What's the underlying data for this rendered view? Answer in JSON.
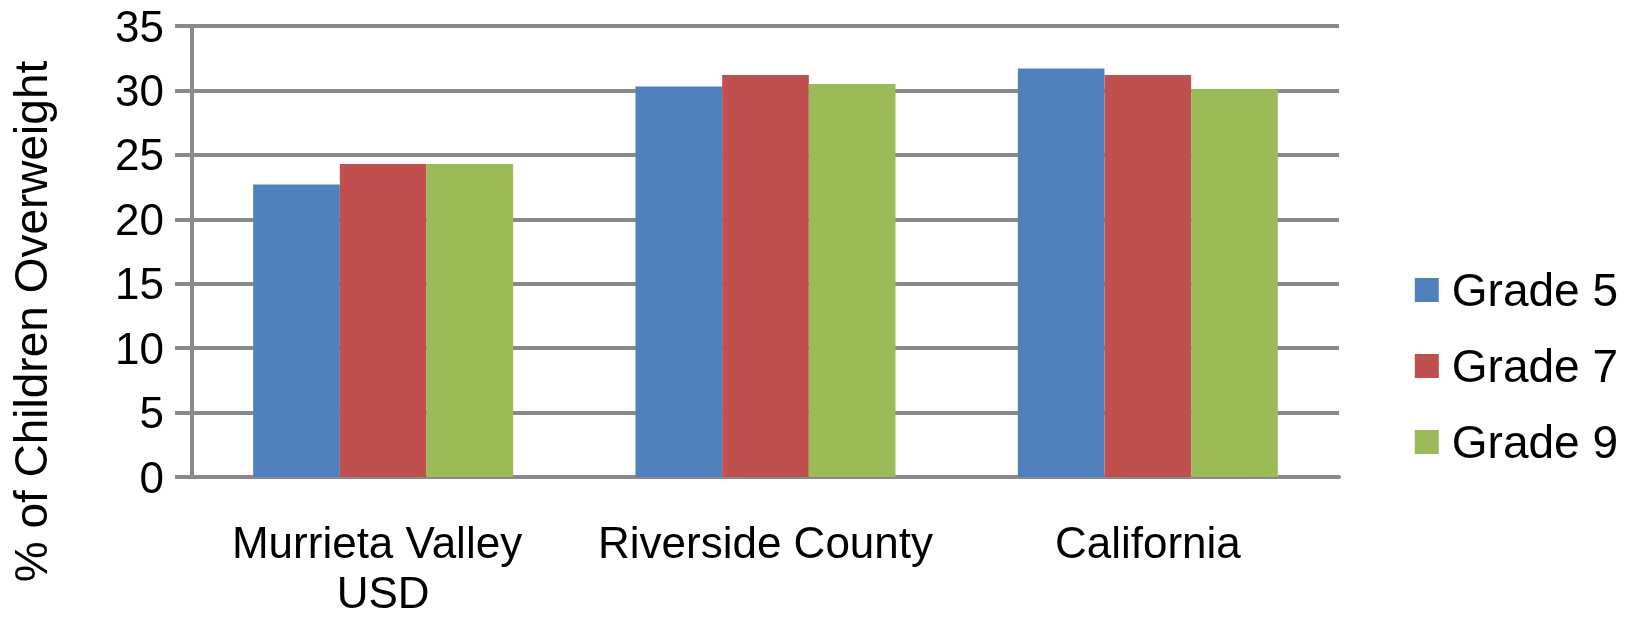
{
  "chart_data": {
    "type": "bar",
    "ylabel": "% of Children Overweight",
    "categories": [
      "Murrieta Valley USD",
      "Riverside County",
      "California"
    ],
    "series": [
      {
        "name": "Grade 5",
        "color": "#4f81bd",
        "values": [
          22.7,
          30.3,
          31.7
        ]
      },
      {
        "name": "Grade 7",
        "color": "#c0504d",
        "values": [
          24.3,
          31.2,
          31.2
        ]
      },
      {
        "name": "Grade 9",
        "color": "#9bbb59",
        "values": [
          24.3,
          30.5,
          30.1
        ]
      }
    ],
    "ylim": [
      0,
      35
    ],
    "yticks": [
      0,
      5,
      10,
      15,
      20,
      25,
      30,
      35
    ],
    "grid": "y",
    "legend": "right"
  }
}
